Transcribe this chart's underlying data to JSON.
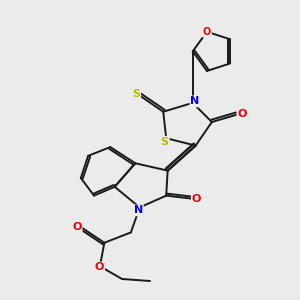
{
  "background_color": "#ebebeb",
  "bond_color": "#1a1a1a",
  "atom_colors": {
    "N": "#0000ee",
    "O": "#ee0000",
    "S_yellow": "#bbbb00",
    "C": "#1a1a1a"
  },
  "figsize": [
    3.0,
    3.0
  ],
  "dpi": 100
}
